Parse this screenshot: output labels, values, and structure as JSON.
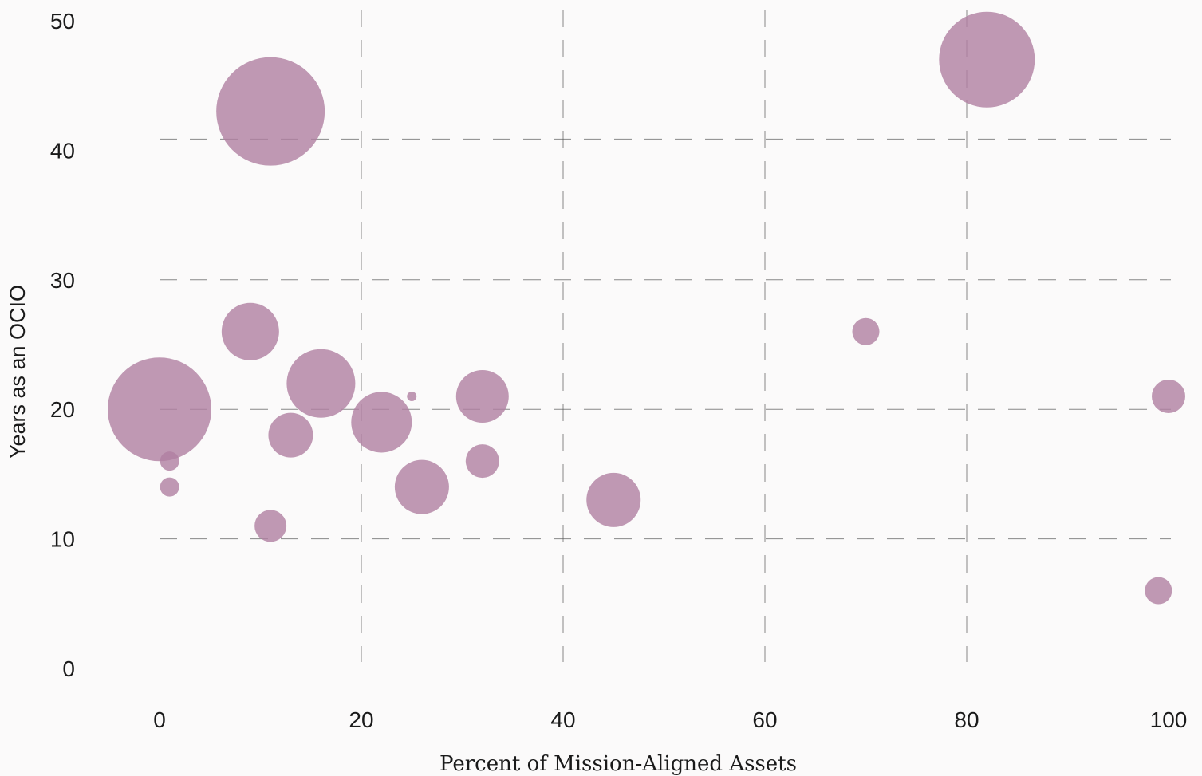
{
  "chart_data": {
    "type": "scatter",
    "xlabel": "Percent of Mission-Aligned Assets",
    "ylabel": "Years as an OCIO",
    "xlim": [
      -10,
      101
    ],
    "ylim": [
      -3,
      51
    ],
    "x_ticks": [
      0,
      20,
      40,
      60,
      80,
      100
    ],
    "y_ticks": [
      0,
      10,
      20,
      30,
      40,
      50
    ],
    "grid": true,
    "color": "#b07fa1",
    "series": [
      {
        "points": [
          {
            "x": 0,
            "y": 20,
            "r": 65
          },
          {
            "x": 11,
            "y": 43,
            "r": 68
          },
          {
            "x": 82,
            "y": 47,
            "r": 60
          },
          {
            "x": 9,
            "y": 26,
            "r": 36
          },
          {
            "x": 16,
            "y": 22,
            "r": 43
          },
          {
            "x": 13,
            "y": 18,
            "r": 28
          },
          {
            "x": 22,
            "y": 19,
            "r": 38
          },
          {
            "x": 25,
            "y": 21,
            "r": 6
          },
          {
            "x": 32,
            "y": 21,
            "r": 33
          },
          {
            "x": 32,
            "y": 16,
            "r": 21
          },
          {
            "x": 26,
            "y": 14,
            "r": 34
          },
          {
            "x": 45,
            "y": 13,
            "r": 34
          },
          {
            "x": 11,
            "y": 11,
            "r": 20
          },
          {
            "x": 1,
            "y": 16,
            "r": 12
          },
          {
            "x": 1,
            "y": 14,
            "r": 12
          },
          {
            "x": 70,
            "y": 26,
            "r": 17
          },
          {
            "x": 100,
            "y": 21,
            "r": 21
          },
          {
            "x": 99,
            "y": 6,
            "r": 17
          }
        ]
      }
    ]
  }
}
